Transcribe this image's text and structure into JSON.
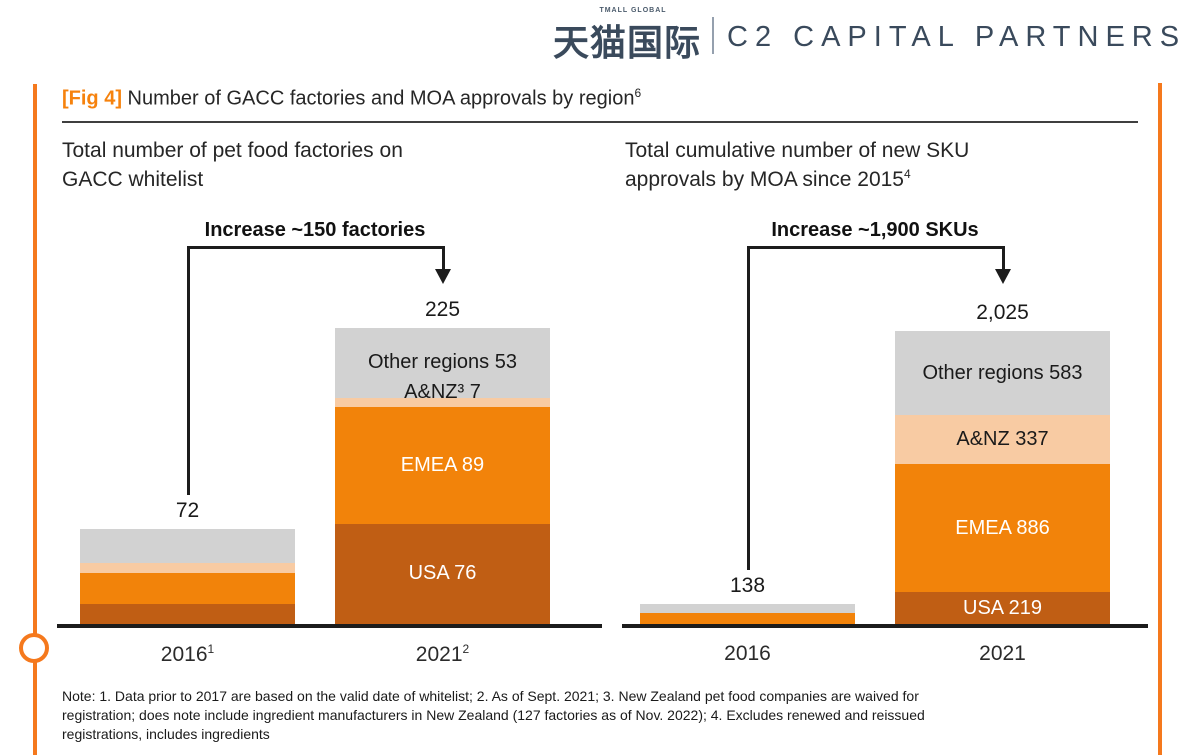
{
  "header": {
    "logo_small": "TMALL GLOBAL",
    "logo_cn": "天猫国际",
    "logo_right": "C2 CAPITAL PARTNERS"
  },
  "figure": {
    "tag": "[Fig 4]",
    "title": " Number of GACC factories and MOA approvals by region",
    "title_sup": "6"
  },
  "colors": {
    "accent_orange": "#F5791D",
    "fig_tag_orange": "#F6820D",
    "axis_dark": "#1C1C1C",
    "logo_navy": "#3A4A5C",
    "bar_usa_brown": "#C05E14",
    "bar_emea_orange": "#F2830A",
    "bar_anz_peach": "#F8CBA3",
    "bar_other_gray": "#D2D2D2"
  },
  "chart_data": [
    {
      "id": "factories",
      "type": "bar",
      "stacked": true,
      "subtitle": "Total number of pet food factories on GACC whitelist",
      "subtitle_line1": "Total number of pet food factories on",
      "subtitle_line2": "GACC whitelist",
      "annotation": "Increase ~150 factories",
      "ylim": [
        0,
        225
      ],
      "grid": false,
      "legend": false,
      "categories": [
        {
          "label": "2016",
          "sup": "1",
          "total": 72,
          "total_label": "72"
        },
        {
          "label": "2021",
          "sup": "2",
          "total": 225,
          "total_label": "225"
        }
      ],
      "series": [
        {
          "name": "USA",
          "color": "#C05E14",
          "text_color": "#FFFFFF",
          "values": [
            15,
            76
          ],
          "labels": [
            null,
            "USA 76"
          ]
        },
        {
          "name": "EMEA",
          "color": "#F2830A",
          "text_color": "#FFFFFF",
          "values": [
            24,
            89
          ],
          "labels": [
            null,
            "EMEA 89"
          ]
        },
        {
          "name": "A&NZ",
          "color": "#F8CBA3",
          "text_color": "#1A1A1A",
          "values": [
            7,
            7
          ],
          "labels": [
            null,
            "A&NZ³ 7"
          ]
        },
        {
          "name": "Other regions",
          "color": "#D2D2D2",
          "text_color": "#1A1A1A",
          "values": [
            26,
            53
          ],
          "labels": [
            null,
            "Other regions 53"
          ]
        }
      ]
    },
    {
      "id": "skus",
      "type": "bar",
      "stacked": true,
      "subtitle": "Total cumulative number of new SKU approvals by MOA since 2015",
      "subtitle_line1": "Total cumulative number of new SKU",
      "subtitle_line2": "approvals by MOA since 2015",
      "subtitle_sup": "4",
      "annotation": "Increase ~1,900 SKUs",
      "ylim": [
        0,
        2025
      ],
      "grid": false,
      "legend": false,
      "categories": [
        {
          "label": "2016",
          "sup": null,
          "total": 138,
          "total_label": "138"
        },
        {
          "label": "2021",
          "sup": null,
          "total": 2025,
          "total_label": "2,025"
        }
      ],
      "series": [
        {
          "name": "USA",
          "color": "#C05E14",
          "text_color": "#FFFFFF",
          "values": [
            0,
            219
          ],
          "labels": [
            null,
            "USA 219"
          ]
        },
        {
          "name": "EMEA",
          "color": "#F2830A",
          "text_color": "#FFFFFF",
          "values": [
            76,
            886
          ],
          "labels": [
            null,
            "EMEA 886"
          ]
        },
        {
          "name": "A&NZ",
          "color": "#F8CBA3",
          "text_color": "#1A1A1A",
          "values": [
            0,
            337
          ],
          "labels": [
            null,
            "A&NZ 337"
          ]
        },
        {
          "name": "Other regions",
          "color": "#D2D2D2",
          "text_color": "#1A1A1A",
          "values": [
            62,
            583
          ],
          "labels": [
            null,
            "Other regions 583"
          ]
        }
      ]
    }
  ],
  "note": {
    "lines": [
      "Note: 1. Data prior to 2017 are based on the valid date of whitelist; 2. As of Sept. 2021; 3. New Zealand pet food companies are waived for",
      "registration; does note include ingredient manufacturers in New Zealand (127 factories as of Nov. 2022); 4. Excludes renewed and reissued",
      "registrations, includes ingredients"
    ]
  }
}
